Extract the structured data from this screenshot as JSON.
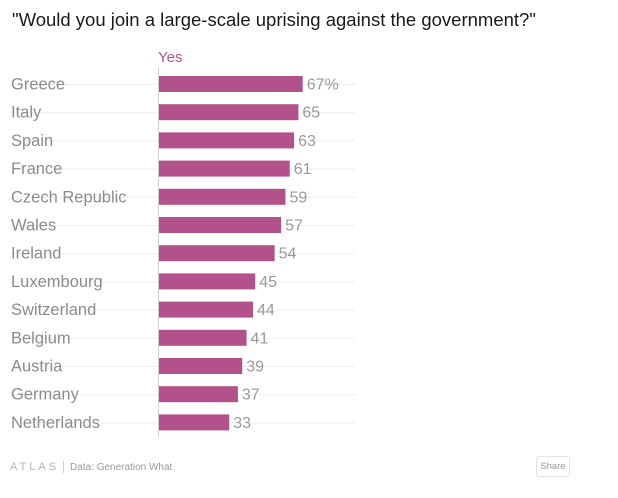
{
  "title": "\"Would you join a large-scale uprising against the government?\"",
  "chart_data": {
    "type": "bar",
    "orientation": "horizontal",
    "title": "\"Would you join a large-scale uprising against the government?\"",
    "series": [
      {
        "name": "Yes",
        "color": "#b3528a",
        "values": [
          67,
          65,
          63,
          61,
          59,
          57,
          54,
          45,
          44,
          41,
          39,
          37,
          33
        ],
        "labels": [
          "67%",
          "65",
          "63",
          "61",
          "59",
          "57",
          "54",
          "45",
          "44",
          "41",
          "39",
          "37",
          "33"
        ]
      }
    ],
    "categories": [
      "Greece",
      "Italy",
      "Spain",
      "France",
      "Czech Republic",
      "Wales",
      "Ireland",
      "Luxembourg",
      "Switzerland",
      "Belgium",
      "Austria",
      "Germany",
      "Netherlands"
    ],
    "xlim": [
      0,
      100
    ],
    "grid": false,
    "legend": "top"
  },
  "footer": {
    "brand": "ATLAS",
    "source": "Data: Generation What",
    "share_label": "Share"
  }
}
